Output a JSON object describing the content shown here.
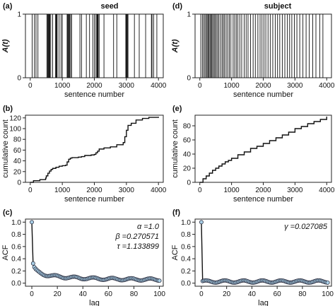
{
  "chart_data": [
    {
      "id": "a",
      "panel_label": "(a)",
      "type": "bar",
      "title": "seed",
      "xlabel": "sentence number",
      "ylabel": "A(t)",
      "xlim": [
        -150,
        4150
      ],
      "ylim": [
        0,
        1
      ],
      "xticks": [
        "0",
        "1000",
        "2000",
        "3000",
        "4000"
      ],
      "yticks": [
        "0",
        "1"
      ],
      "events": [
        60,
        130,
        180,
        240,
        520,
        540,
        560,
        580,
        590,
        610,
        640,
        700,
        790,
        805,
        820,
        840,
        900,
        960,
        1000,
        1150,
        1170,
        1190,
        1210,
        1230,
        1260,
        1290,
        1550,
        1600,
        1750,
        1850,
        1950,
        2000,
        2050,
        2080,
        2090,
        2100,
        2120,
        2150,
        2300,
        2600,
        2700,
        2980,
        3000,
        3010,
        3020,
        3030,
        3050,
        3250,
        3400,
        3600,
        3780,
        3800,
        3850,
        3950
      ]
    },
    {
      "id": "d",
      "panel_label": "(d)",
      "type": "bar",
      "title": "subject",
      "xlabel": "sentence number",
      "ylabel": "A(t)",
      "xlim": [
        -150,
        4150
      ],
      "ylim": [
        0,
        1
      ],
      "xticks": [
        "0",
        "1000",
        "2000",
        "3000",
        "4000"
      ],
      "yticks": [
        "0",
        "1"
      ],
      "events": [
        30,
        80,
        120,
        160,
        200,
        230,
        260,
        290,
        320,
        350,
        380,
        410,
        450,
        480,
        520,
        560,
        600,
        650,
        700,
        740,
        780,
        830,
        880,
        930,
        980,
        1050,
        1100,
        1150,
        1200,
        1260,
        1320,
        1400,
        1460,
        1520,
        1600,
        1680,
        1750,
        1830,
        1900,
        1960,
        2020,
        2080,
        2150,
        2220,
        2300,
        2380,
        2450,
        2520,
        2600,
        2680,
        2760,
        2830,
        2900,
        2980,
        3060,
        3150,
        3250,
        3350,
        3450,
        3560,
        3660,
        3780,
        3880
      ]
    },
    {
      "id": "b",
      "panel_label": "(b)",
      "type": "line",
      "xlabel": "sentence number",
      "ylabel": "cumulative count",
      "xlim": [
        -150,
        4150
      ],
      "ylim": [
        0,
        125
      ],
      "xticks": [
        0,
        1000,
        2000,
        3000,
        4000
      ],
      "yticks": [
        0,
        20,
        40,
        60,
        80,
        100,
        120
      ],
      "series": [
        {
          "x": [
            0,
            100,
            200,
            300,
            400,
            480,
            500,
            550,
            600,
            650,
            700,
            800,
            900,
            1000,
            1100,
            1150,
            1200,
            1250,
            1300,
            1500,
            1600,
            1700,
            1800,
            1900,
            2000,
            2050,
            2100,
            2150,
            2300,
            2500,
            2700,
            2900,
            2950,
            3000,
            3050,
            3150,
            3300,
            3500,
            3700,
            4000
          ],
          "y": [
            0,
            3,
            3,
            5,
            5,
            8,
            12,
            17,
            21,
            24,
            26,
            28,
            30,
            31,
            32,
            38,
            43,
            45,
            46,
            47,
            48,
            50,
            50,
            51,
            52,
            55,
            58,
            62,
            64,
            66,
            70,
            74,
            85,
            97,
            106,
            110,
            116,
            119,
            121,
            122
          ]
        }
      ]
    },
    {
      "id": "e",
      "panel_label": "(e)",
      "type": "line",
      "xlabel": "sentence number",
      "ylabel": "cumulative count",
      "xlim": [
        -150,
        4150
      ],
      "ylim": [
        0,
        95
      ],
      "xticks": [
        0,
        1000,
        2000,
        3000,
        4000
      ],
      "yticks": [
        0,
        20,
        40,
        60,
        80
      ],
      "series": [
        {
          "x": [
            0,
            100,
            200,
            300,
            400,
            500,
            600,
            700,
            800,
            900,
            1000,
            1200,
            1400,
            1600,
            1800,
            2000,
            2200,
            2400,
            2600,
            2800,
            3000,
            3200,
            3400,
            3600,
            3800,
            4000
          ],
          "y": [
            0,
            5,
            9,
            13,
            17,
            20,
            23,
            26,
            29,
            31,
            34,
            39,
            43,
            48,
            51,
            55,
            59,
            63,
            67,
            71,
            76,
            79,
            83,
            86,
            89,
            93
          ]
        }
      ]
    },
    {
      "id": "c",
      "panel_label": "(c)",
      "type": "scatter",
      "xlabel": "lag",
      "ylabel": "ACF",
      "xlim": [
        -5,
        103
      ],
      "ylim": [
        -0.05,
        1.05
      ],
      "xticks": [
        0,
        20,
        40,
        60,
        80,
        100
      ],
      "yticks": [
        "0.0",
        "0.2",
        "0.4",
        "0.6",
        "0.8",
        "1.0"
      ],
      "annotations": [
        "α =1.0",
        "β =0.270571",
        "τ =1.133899"
      ],
      "fit": {
        "alpha": 1.0,
        "beta": 0.270571,
        "tau": 1.133899
      }
    },
    {
      "id": "f",
      "panel_label": "(f)",
      "type": "scatter",
      "xlabel": "lag",
      "ylabel": "ACF",
      "xlim": [
        -5,
        103
      ],
      "ylim": [
        -0.05,
        1.05
      ],
      "xticks": [
        0,
        20,
        40,
        60,
        80,
        100
      ],
      "yticks": [
        "0.0",
        "0.2",
        "0.4",
        "0.6",
        "0.8",
        "1.0"
      ],
      "annotations": [
        "γ =0.027085"
      ],
      "fit": {
        "gamma": 0.027085
      }
    }
  ]
}
